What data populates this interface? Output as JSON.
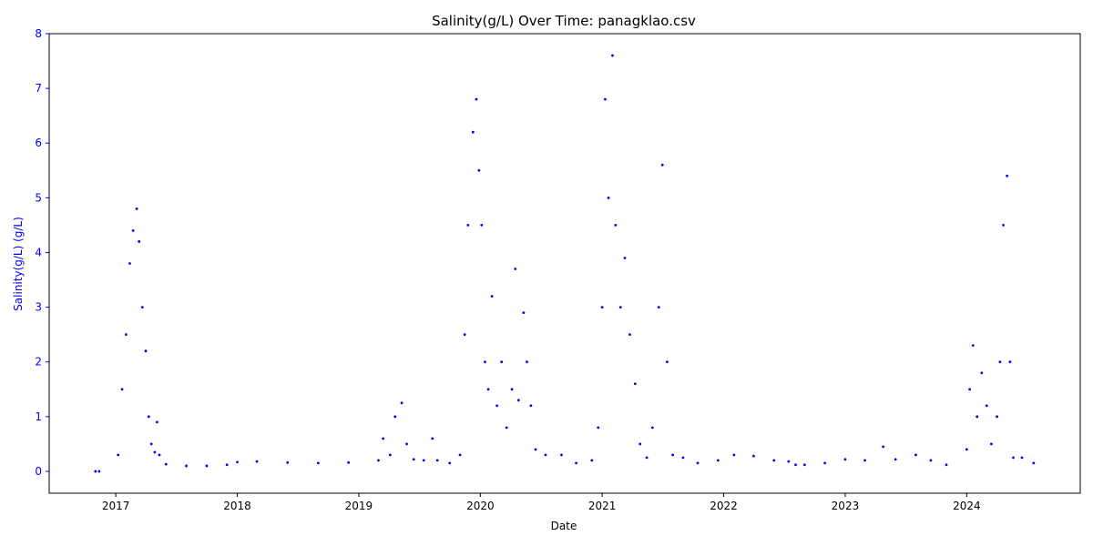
{
  "chart_data": {
    "type": "scatter",
    "title": "Salinity(g/L) Over Time: panagklao.csv",
    "xlabel": "Date",
    "ylabel": "Salinity(g/L) (g/L)",
    "x_ticks": [
      "2017",
      "2018",
      "2019",
      "2020",
      "2021",
      "2022",
      "2023",
      "2024"
    ],
    "y_ticks": [
      "0",
      "1",
      "2",
      "3",
      "4",
      "5",
      "6",
      "7",
      "8"
    ],
    "xlim": [
      "2016-06-15",
      "2024-12-07"
    ],
    "ylim": [
      -0.4,
      8.0
    ],
    "grid": false,
    "marker_color": "#0000ff",
    "y_axis_color": "#0000ff",
    "series": [
      {
        "values": [
          [
            "2016-11-01",
            0.0
          ],
          [
            "2016-11-12",
            0.0
          ],
          [
            "2017-01-08",
            0.3
          ],
          [
            "2017-01-20",
            1.5
          ],
          [
            "2017-02-01",
            2.5
          ],
          [
            "2017-02-12",
            3.8
          ],
          [
            "2017-02-22",
            4.4
          ],
          [
            "2017-03-05",
            4.8
          ],
          [
            "2017-03-12",
            4.2
          ],
          [
            "2017-03-22",
            3.0
          ],
          [
            "2017-04-01",
            2.2
          ],
          [
            "2017-04-10",
            1.0
          ],
          [
            "2017-04-18",
            0.5
          ],
          [
            "2017-04-28",
            0.35
          ],
          [
            "2017-05-05",
            0.9
          ],
          [
            "2017-05-12",
            0.3
          ],
          [
            "2017-06-01",
            0.13
          ],
          [
            "2017-08-01",
            0.1
          ],
          [
            "2017-10-01",
            0.1
          ],
          [
            "2017-12-01",
            0.12
          ],
          [
            "2018-01-01",
            0.17
          ],
          [
            "2018-03-01",
            0.18
          ],
          [
            "2018-06-01",
            0.16
          ],
          [
            "2018-09-01",
            0.15
          ],
          [
            "2018-12-01",
            0.16
          ],
          [
            "2019-03-01",
            0.2
          ],
          [
            "2019-03-15",
            0.6
          ],
          [
            "2019-04-05",
            0.3
          ],
          [
            "2019-04-20",
            1.0
          ],
          [
            "2019-05-10",
            1.25
          ],
          [
            "2019-05-25",
            0.5
          ],
          [
            "2019-06-15",
            0.22
          ],
          [
            "2019-07-15",
            0.2
          ],
          [
            "2019-08-10",
            0.6
          ],
          [
            "2019-08-25",
            0.2
          ],
          [
            "2019-10-01",
            0.15
          ],
          [
            "2019-11-01",
            0.3
          ],
          [
            "2019-11-15",
            2.5
          ],
          [
            "2019-11-25",
            4.5
          ],
          [
            "2019-12-10",
            6.2
          ],
          [
            "2019-12-20",
            6.8
          ],
          [
            "2019-12-28",
            5.5
          ],
          [
            "2020-01-05",
            4.5
          ],
          [
            "2020-01-15",
            2.0
          ],
          [
            "2020-01-25",
            1.5
          ],
          [
            "2020-02-05",
            3.2
          ],
          [
            "2020-02-20",
            1.2
          ],
          [
            "2020-03-05",
            2.0
          ],
          [
            "2020-03-20",
            0.8
          ],
          [
            "2020-04-05",
            1.5
          ],
          [
            "2020-04-15",
            3.7
          ],
          [
            "2020-04-25",
            1.3
          ],
          [
            "2020-05-10",
            2.9
          ],
          [
            "2020-05-20",
            2.0
          ],
          [
            "2020-06-01",
            1.2
          ],
          [
            "2020-06-15",
            0.4
          ],
          [
            "2020-07-15",
            0.3
          ],
          [
            "2020-09-01",
            0.3
          ],
          [
            "2020-10-15",
            0.15
          ],
          [
            "2020-12-01",
            0.2
          ],
          [
            "2020-12-20",
            0.8
          ],
          [
            "2021-01-01",
            3.0
          ],
          [
            "2021-01-10",
            6.8
          ],
          [
            "2021-01-20",
            5.0
          ],
          [
            "2021-02-01",
            7.6
          ],
          [
            "2021-02-10",
            4.5
          ],
          [
            "2021-02-25",
            3.0
          ],
          [
            "2021-03-10",
            3.9
          ],
          [
            "2021-03-25",
            2.5
          ],
          [
            "2021-04-10",
            1.6
          ],
          [
            "2021-04-25",
            0.5
          ],
          [
            "2021-05-15",
            0.25
          ],
          [
            "2021-06-01",
            0.8
          ],
          [
            "2021-06-20",
            3.0
          ],
          [
            "2021-07-01",
            5.6
          ],
          [
            "2021-07-15",
            2.0
          ],
          [
            "2021-08-01",
            0.3
          ],
          [
            "2021-09-01",
            0.25
          ],
          [
            "2021-10-15",
            0.15
          ],
          [
            "2021-12-15",
            0.2
          ],
          [
            "2022-02-01",
            0.3
          ],
          [
            "2022-04-01",
            0.28
          ],
          [
            "2022-06-01",
            0.2
          ],
          [
            "2022-07-15",
            0.18
          ],
          [
            "2022-08-05",
            0.12
          ],
          [
            "2022-09-01",
            0.12
          ],
          [
            "2022-11-01",
            0.15
          ],
          [
            "2023-01-01",
            0.22
          ],
          [
            "2023-03-01",
            0.2
          ],
          [
            "2023-04-25",
            0.45
          ],
          [
            "2023-06-01",
            0.22
          ],
          [
            "2023-08-01",
            0.3
          ],
          [
            "2023-09-15",
            0.2
          ],
          [
            "2023-11-01",
            0.12
          ],
          [
            "2024-01-01",
            0.4
          ],
          [
            "2024-01-10",
            1.5
          ],
          [
            "2024-01-20",
            2.3
          ],
          [
            "2024-02-01",
            1.0
          ],
          [
            "2024-02-15",
            1.8
          ],
          [
            "2024-03-01",
            1.2
          ],
          [
            "2024-03-15",
            0.5
          ],
          [
            "2024-04-01",
            1.0
          ],
          [
            "2024-04-10",
            2.0
          ],
          [
            "2024-04-20",
            4.5
          ],
          [
            "2024-05-01",
            5.4
          ],
          [
            "2024-05-10",
            2.0
          ],
          [
            "2024-05-20",
            0.25
          ],
          [
            "2024-06-15",
            0.25
          ],
          [
            "2024-07-20",
            0.15
          ]
        ]
      }
    ]
  }
}
